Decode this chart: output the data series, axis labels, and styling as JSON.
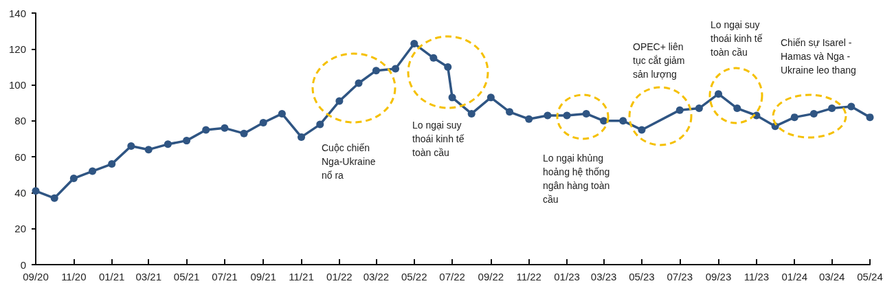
{
  "chart_data": {
    "type": "line",
    "color": "#2f5583",
    "marker": "circle",
    "grid": false,
    "x": [
      "2020-09",
      "2020-10",
      "2020-11",
      "2020-12",
      "2021-01",
      "2021-02",
      "2021-03",
      "2021-04",
      "2021-05",
      "2021-06",
      "2021-07",
      "2021-08",
      "2021-09",
      "2021-10",
      "2021-11",
      "2021-12",
      "2022-01",
      "2022-02",
      "2022-03",
      "2022-04",
      "2022-05",
      "2022-06",
      "2022-06-24",
      "2022-07",
      "2022-08",
      "2022-09",
      "2022-10",
      "2022-11",
      "2022-12",
      "2023-01",
      "2023-02",
      "2023-03",
      "2023-04",
      "2023-05",
      "2023-07",
      "2023-08",
      "2023-09",
      "2023-10",
      "2023-11",
      "2023-12",
      "2024-01",
      "2024-02",
      "2024-03",
      "2024-04",
      "2024-05"
    ],
    "values": [
      41,
      37,
      48,
      52,
      56,
      66,
      64,
      67,
      69,
      75,
      76,
      73,
      79,
      84,
      71,
      78,
      91,
      101,
      108,
      109,
      123,
      115,
      110,
      93,
      84,
      93,
      85,
      81,
      83,
      83,
      84,
      80,
      80,
      75,
      86,
      87,
      95,
      87,
      83,
      77,
      82,
      84,
      87,
      88,
      82
    ],
    "xlim": [
      "2020-09",
      "2024-05"
    ],
    "xticks": [
      {
        "value": "2020-09",
        "label": "09/20"
      },
      {
        "value": "2020-11",
        "label": "11/20"
      },
      {
        "value": "2021-01",
        "label": "01/21"
      },
      {
        "value": "2021-03",
        "label": "03/21"
      },
      {
        "value": "2021-05",
        "label": "05/21"
      },
      {
        "value": "2021-07",
        "label": "07/21"
      },
      {
        "value": "2021-09",
        "label": "09/21"
      },
      {
        "value": "2021-11",
        "label": "11/21"
      },
      {
        "value": "2022-01",
        "label": "01/22"
      },
      {
        "value": "2022-03",
        "label": "03/22"
      },
      {
        "value": "2022-05",
        "label": "05/22"
      },
      {
        "value": "2022-07",
        "label": "07/22"
      },
      {
        "value": "2022-09",
        "label": "09/22"
      },
      {
        "value": "2022-11",
        "label": "11/22"
      },
      {
        "value": "2023-01",
        "label": "01/23"
      },
      {
        "value": "2023-03",
        "label": "03/23"
      },
      {
        "value": "2023-05",
        "label": "05/23"
      },
      {
        "value": "2023-07",
        "label": "07/23"
      },
      {
        "value": "2023-09",
        "label": "09/23"
      },
      {
        "value": "2023-11",
        "label": "11/23"
      },
      {
        "value": "2024-01",
        "label": "01/24"
      },
      {
        "value": "2024-03",
        "label": "03/24"
      },
      {
        "value": "2024-05",
        "label": "05/24"
      }
    ],
    "ylim": [
      0,
      140
    ],
    "yticks": [
      0,
      20,
      40,
      60,
      80,
      100,
      120,
      140
    ],
    "annotations": [
      "Cuộc chiến\nNga-Ukraine\nnổ ra",
      "Lo ngại suy\nthoái kinh tế\ntoàn cầu",
      "Lo ngại khủng\nhoảng hệ thống\nngân hàng toàn\ncầu",
      "OPEC+ liên\ntục cắt giảm\nsản lượng",
      "Lo ngại suy\nthoái kinh tế\ntoàn cầu",
      "Chiến sự Isarel -\nHamas và Nga -\nUkraine leo thang"
    ]
  }
}
